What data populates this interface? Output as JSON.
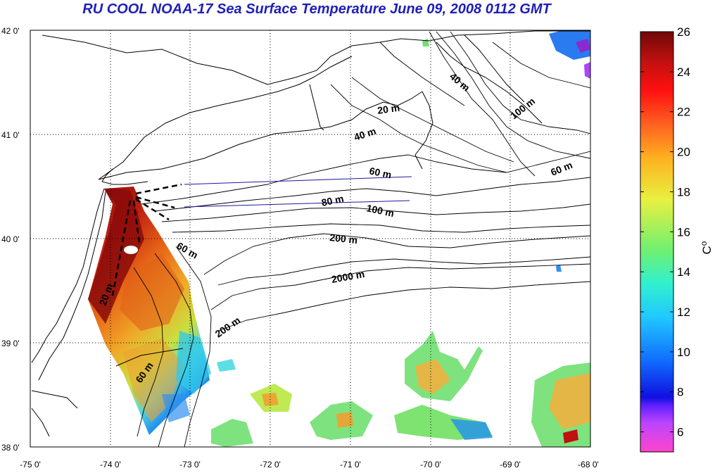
{
  "title": "RU COOL  NOAA-17 Sea Surface Temperature June 09, 2008 0112 GMT",
  "lat_ticks": [
    "42 0'",
    "41 0'",
    "40 0'",
    "39 0'",
    "38 0'"
  ],
  "lon_ticks": [
    "-75 0'",
    "-74 0'",
    "-73 0'",
    "-72 0'",
    "-71 0'",
    "-70 0'",
    "-69 0'",
    "-68 0'"
  ],
  "colorbar": {
    "ticks": [
      "26",
      "24",
      "22",
      "20",
      "18",
      "16",
      "14",
      "12",
      "10",
      "8",
      "6"
    ],
    "unit": "C",
    "unit_sup": "o",
    "min": 5,
    "max": 26,
    "colors": [
      "#ff44cc",
      "#aa44ff",
      "#1010e0",
      "#1060ff",
      "#20c0ff",
      "#30f0d0",
      "#60f070",
      "#e8f040",
      "#ffb020",
      "#ff6020",
      "#ff1010",
      "#c01010",
      "#7a0a0a"
    ]
  },
  "contour_labels": [
    "20 m",
    "40 m",
    "60 m",
    "80 m",
    "100 m",
    "200 m",
    "2000 m",
    "40 m",
    "100 m",
    "60 m",
    "60 m",
    "20 m",
    "200 m",
    "60 m"
  ],
  "colors": {
    "title": "#1f1fb8",
    "transect": "#1a1aa0",
    "frame": "#000000",
    "grid": "#000000"
  }
}
